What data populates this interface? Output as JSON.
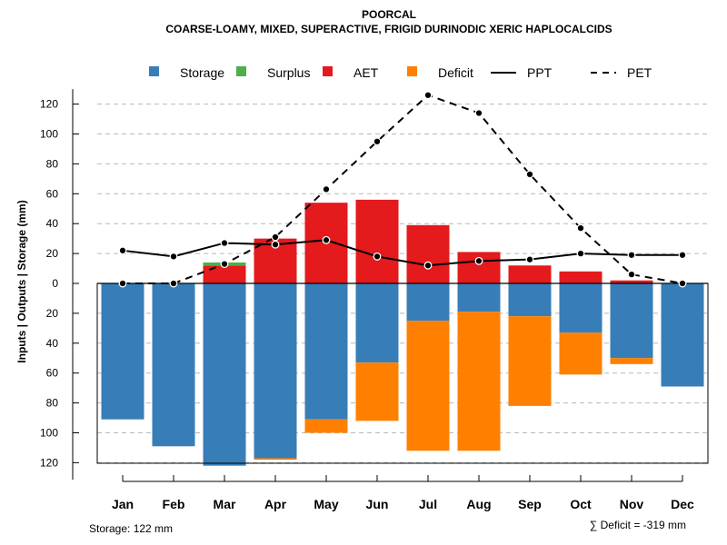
{
  "chart_data": {
    "type": "bar",
    "title": "POORCAL",
    "subtitle": "COARSE-LOAMY, MIXED, SUPERACTIVE, FRIGID DURINODIC XERIC HAPLOCALCIDS",
    "ylabel": "Inputs | Outputs | Storage    (mm)",
    "ylim": [
      -122,
      130
    ],
    "yticks": [
      120,
      100,
      80,
      60,
      40,
      20,
      0,
      20,
      40,
      60,
      80,
      100,
      120
    ],
    "ytick_values": [
      120,
      100,
      80,
      60,
      40,
      20,
      0,
      -20,
      -40,
      -60,
      -80,
      -100,
      -120
    ],
    "categories": [
      "Jan",
      "Feb",
      "Mar",
      "Apr",
      "May",
      "Jun",
      "Jul",
      "Aug",
      "Sep",
      "Oct",
      "Nov",
      "Dec"
    ],
    "legend": [
      {
        "name": "Storage",
        "color": "#377eb8",
        "kind": "box"
      },
      {
        "name": "Surplus",
        "color": "#4daf4a",
        "kind": "box"
      },
      {
        "name": "AET",
        "color": "#e41a1c",
        "kind": "box"
      },
      {
        "name": "Deficit",
        "color": "#ff7f00",
        "kind": "box"
      },
      {
        "name": "PPT",
        "color": "#000000",
        "kind": "solid"
      },
      {
        "name": "PET",
        "color": "#000000",
        "kind": "dashed"
      }
    ],
    "series": [
      {
        "name": "AET",
        "values": [
          0,
          0,
          12,
          30,
          54,
          56,
          39,
          21,
          12,
          8,
          2,
          0
        ]
      },
      {
        "name": "Surplus",
        "values": [
          0,
          0,
          2,
          0,
          0,
          0,
          0,
          0,
          0,
          0,
          0,
          0
        ]
      },
      {
        "name": "Storage",
        "values": [
          91,
          109,
          122,
          117,
          91,
          53,
          25,
          19,
          22,
          33,
          50,
          69
        ]
      },
      {
        "name": "Deficit",
        "values": [
          0,
          0,
          0,
          1,
          9,
          39,
          87,
          93,
          60,
          28,
          4,
          0
        ]
      },
      {
        "name": "PPT",
        "values": [
          22,
          18,
          27,
          26,
          29,
          18,
          12,
          15,
          16,
          20,
          19,
          19
        ]
      },
      {
        "name": "PET",
        "values": [
          0,
          0,
          13,
          31,
          63,
          95,
          126,
          114,
          73,
          37,
          6,
          0
        ]
      }
    ],
    "storage_note": "Storage: 122 mm",
    "deficit_note": "∑ Deficit = -319 mm"
  }
}
